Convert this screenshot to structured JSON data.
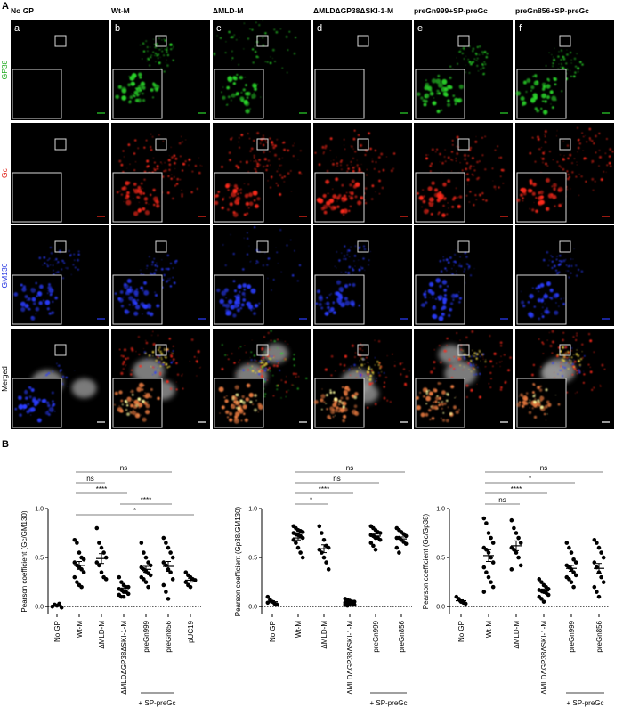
{
  "panel_a": {
    "label": "A",
    "columns": [
      {
        "letter": "a",
        "title": "No GP"
      },
      {
        "letter": "b",
        "title": "Wt-M"
      },
      {
        "letter": "c",
        "title": "ΔMLD-M"
      },
      {
        "letter": "d",
        "title": "ΔMLDΔGP38ΔSKI-1-M"
      },
      {
        "letter": "e",
        "title": "preGn999+SP-preGc"
      },
      {
        "letter": "f",
        "title": "preGn856+SP-preGc"
      }
    ],
    "rows": [
      "GP38",
      "Gc",
      "GM130",
      "Merged"
    ]
  },
  "panel_b": {
    "label": "B"
  },
  "chart_data": [
    {
      "type": "strip",
      "y_label": "Pearson coefficient (Gc/GM130)",
      "categories": [
        "No GP",
        "Wt-M",
        "ΔMLD-M",
        "ΔMLDΔGP38ΔSKI-1-M",
        "preGn999",
        "preGn856",
        "pUC19"
      ],
      "points": [
        [
          0.0,
          0.02,
          0.01,
          0.03,
          -0.01
        ],
        [
          0.68,
          0.65,
          0.55,
          0.5,
          0.48,
          0.45,
          0.42,
          0.4,
          0.38,
          0.35,
          0.3,
          0.25,
          0.22,
          0.2
        ],
        [
          0.8,
          0.65,
          0.6,
          0.55,
          0.5,
          0.45,
          0.42,
          0.35,
          0.3,
          0.28
        ],
        [
          0.3,
          0.25,
          0.22,
          0.2,
          0.2,
          0.18,
          0.17,
          0.15,
          0.15,
          0.13,
          0.12,
          0.1,
          0.1
        ],
        [
          0.65,
          0.55,
          0.5,
          0.45,
          0.42,
          0.4,
          0.38,
          0.36,
          0.34,
          0.32,
          0.3,
          0.28,
          0.25,
          0.2
        ],
        [
          0.7,
          0.65,
          0.6,
          0.55,
          0.5,
          0.45,
          0.42,
          0.38,
          0.35,
          0.28,
          0.22,
          0.15,
          0.08
        ],
        [
          0.35,
          0.32,
          0.3,
          0.28,
          0.27,
          0.25,
          0.22,
          0.2
        ]
      ],
      "means": [
        0.01,
        0.42,
        0.49,
        0.17,
        0.38,
        0.41,
        0.27
      ],
      "sems": [
        0.007,
        0.04,
        0.05,
        0.02,
        0.03,
        0.05,
        0.02
      ],
      "color": "#000000",
      "ylim": [
        -0.08,
        1.0
      ],
      "yticks": [
        {
          "value": 0,
          "label": "0.0"
        },
        0.5,
        {
          "value": 1,
          "label": "1.0"
        }
      ],
      "zero_line": true,
      "comparisons": [
        {
          "start": 1,
          "end": 5,
          "label": "ns"
        },
        {
          "start": 1,
          "end": 2,
          "label": "ns"
        },
        {
          "start": 1,
          "end": 3,
          "label": "****"
        },
        {
          "start": 3,
          "end": 5,
          "label": "****"
        },
        {
          "start": 1,
          "end": 6,
          "label": "*"
        }
      ],
      "group": {
        "start": 4,
        "end": 5,
        "label": "+ SP-preGc"
      }
    },
    {
      "type": "strip",
      "y_label": "Pearson coefficient (Gp38/GM130)",
      "categories": [
        "No GP",
        "Wt-M",
        "ΔMLD-M",
        "ΔMLDΔGP38ΔSKI-1-M",
        "preGn999",
        "preGn856"
      ],
      "points": [
        [
          0.1,
          0.07,
          0.05,
          0.03,
          0.02,
          0.04
        ],
        [
          0.82,
          0.8,
          0.78,
          0.77,
          0.76,
          0.75,
          0.74,
          0.73,
          0.72,
          0.7,
          0.68,
          0.65,
          0.6,
          0.55,
          0.5
        ],
        [
          0.82,
          0.75,
          0.68,
          0.62,
          0.6,
          0.58,
          0.55,
          0.5,
          0.45,
          0.38
        ],
        [
          0.08,
          0.07,
          0.06,
          0.05,
          0.05,
          0.04,
          0.04,
          0.03,
          0.03,
          0.02,
          0.02,
          0.01
        ],
        [
          0.82,
          0.8,
          0.78,
          0.76,
          0.75,
          0.73,
          0.72,
          0.7,
          0.7,
          0.68,
          0.65,
          0.62,
          0.58
        ],
        [
          0.8,
          0.78,
          0.76,
          0.74,
          0.72,
          0.7,
          0.7,
          0.68,
          0.66,
          0.64,
          0.6,
          0.55
        ]
      ],
      "means": [
        0.05,
        0.7,
        0.59,
        0.04,
        0.72,
        0.69
      ],
      "sems": [
        0.01,
        0.02,
        0.04,
        0.006,
        0.02,
        0.02
      ],
      "color": "#000000",
      "ylim": [
        -0.08,
        1.0
      ],
      "yticks": [
        {
          "value": 0,
          "label": "0.0"
        },
        0.5,
        {
          "value": 1,
          "label": "1.0"
        }
      ],
      "zero_line": true,
      "comparisons": [
        {
          "start": 1,
          "end": 5,
          "label": "ns"
        },
        {
          "start": 1,
          "end": 4,
          "label": "ns"
        },
        {
          "start": 1,
          "end": 3,
          "label": "****"
        },
        {
          "start": 1,
          "end": 2,
          "label": "*"
        }
      ],
      "group": {
        "start": 4,
        "end": 5,
        "label": "+ SP-preGc"
      }
    },
    {
      "type": "strip",
      "y_label": "Pearson coefficient (Gc/Gp38)",
      "categories": [
        "No GP",
        "Wt-M",
        "ΔMLD-M",
        "ΔMLDΔGP38ΔSKI-1-M",
        "preGn999",
        "preGn856"
      ],
      "points": [
        [
          0.1,
          0.08,
          0.05,
          0.04,
          0.03
        ],
        [
          0.9,
          0.85,
          0.75,
          0.7,
          0.65,
          0.6,
          0.58,
          0.55,
          0.5,
          0.45,
          0.4,
          0.35,
          0.3,
          0.25,
          0.2,
          0.15
        ],
        [
          0.88,
          0.8,
          0.75,
          0.7,
          0.65,
          0.6,
          0.58,
          0.55,
          0.5,
          0.42,
          0.38
        ],
        [
          0.28,
          0.25,
          0.22,
          0.2,
          0.18,
          0.17,
          0.16,
          0.15,
          0.14,
          0.12,
          0.1,
          0.08,
          0.05
        ],
        [
          0.65,
          0.6,
          0.55,
          0.48,
          0.45,
          0.42,
          0.4,
          0.38,
          0.35,
          0.32,
          0.3,
          0.28,
          0.25,
          0.2
        ],
        [
          0.68,
          0.65,
          0.6,
          0.55,
          0.5,
          0.45,
          0.4,
          0.35,
          0.3,
          0.25,
          0.2,
          0.15,
          0.1
        ]
      ],
      "means": [
        0.06,
        0.52,
        0.62,
        0.16,
        0.39,
        0.39
      ],
      "sems": [
        0.01,
        0.06,
        0.05,
        0.02,
        0.03,
        0.05
      ],
      "color": "#000000",
      "ylim": [
        -0.08,
        1.0
      ],
      "yticks": [
        {
          "value": 0,
          "label": "0.0"
        },
        0.5,
        {
          "value": 1,
          "label": "1.0"
        }
      ],
      "zero_line": true,
      "comparisons": [
        {
          "start": 1,
          "end": 5,
          "label": "ns"
        },
        {
          "start": 1,
          "end": 4,
          "label": "*"
        },
        {
          "start": 1,
          "end": 3,
          "label": "****"
        },
        {
          "start": 1,
          "end": 2,
          "label": "ns"
        }
      ],
      "group": {
        "start": 4,
        "end": 5,
        "label": "+ SP-preGc"
      }
    }
  ]
}
